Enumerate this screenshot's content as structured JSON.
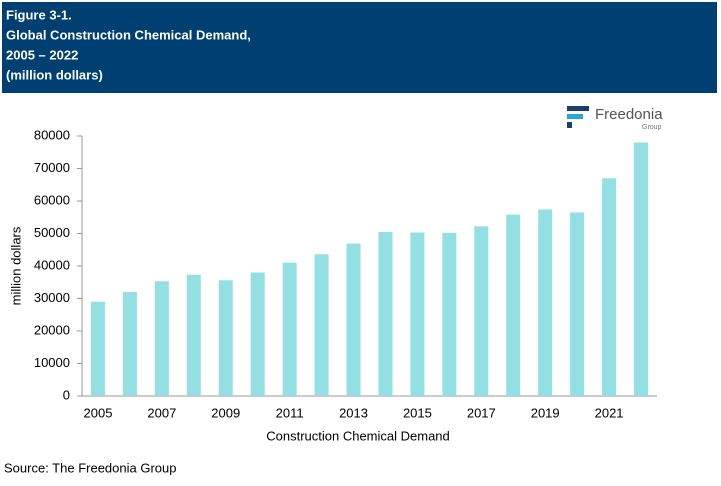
{
  "chart_data": {
    "type": "bar",
    "title_lines": [
      "Figure 3-1.",
      "Global Construction Chemical Demand,",
      "2005 – 2022",
      "(million dollars)"
    ],
    "logo": {
      "name": "Freedonia",
      "sub": "Group"
    },
    "source": "Source: The Freedonia Group",
    "xlabel": "Construction Chemical Demand",
    "ylabel": "million dollars",
    "categories": [
      "2005",
      null,
      "2007",
      null,
      "2009",
      null,
      "2011",
      null,
      "2013",
      null,
      "2015",
      null,
      "2017",
      null,
      "2019",
      null,
      "2021",
      null
    ],
    "values": [
      29000,
      32000,
      35300,
      37300,
      35600,
      38000,
      41000,
      43600,
      46900,
      50500,
      50300,
      50200,
      52200,
      55800,
      57400,
      56500,
      67000,
      78000
    ],
    "color": "#94dfe3",
    "ylim": [
      0,
      80000
    ],
    "yticks": [
      0,
      10000,
      20000,
      30000,
      40000,
      50000,
      60000,
      70000,
      80000
    ],
    "grid": false
  }
}
